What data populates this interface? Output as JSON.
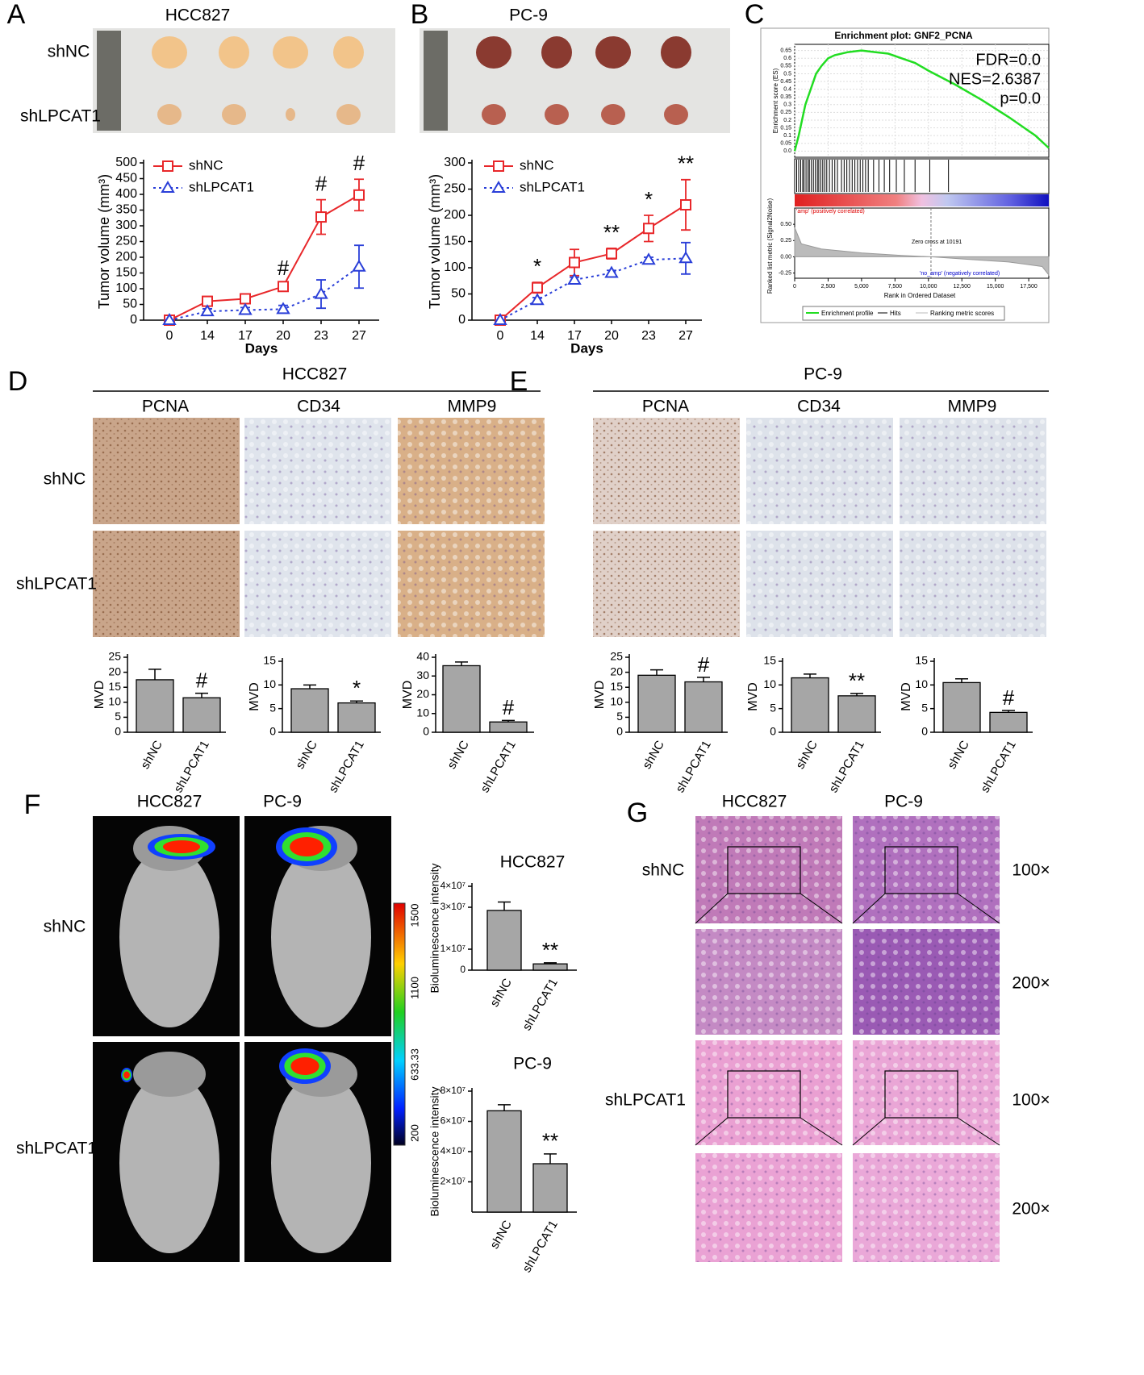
{
  "panel_labels": [
    "A",
    "B",
    "C",
    "D",
    "E",
    "F",
    "G"
  ],
  "photos": [
    {
      "title": "HCC827",
      "rows": [
        "shNC",
        "shLPCAT1"
      ]
    },
    {
      "title": "PC-9",
      "rows": [
        "shNC",
        "shLPCAT1"
      ]
    }
  ],
  "ihc": [
    {
      "title": "HCC827",
      "columns": [
        "PCNA",
        "CD34",
        "MMP9"
      ],
      "rows": [
        "shNC",
        "shLPCAT1"
      ]
    },
    {
      "title": "PC-9",
      "columns": [
        "PCNA",
        "CD34",
        "MMP9"
      ],
      "rows": [
        "shNC",
        "shLPCAT1"
      ]
    }
  ],
  "imaging": {
    "columns": [
      "HCC827",
      "PC-9"
    ],
    "rows": [
      "shNC",
      "shLPCAT1"
    ],
    "colorbar": [
      1500,
      1100,
      633.33,
      200
    ]
  },
  "histology": {
    "columns": [
      "HCC827",
      "PC-9"
    ],
    "rows": [
      "shNC",
      "shLPCAT1"
    ],
    "magnifications": [
      "100×",
      "200×",
      "100×",
      "200×"
    ]
  },
  "chart_data": [
    {
      "type": "line",
      "categories": [
        "0",
        "14",
        "17",
        "20",
        "23",
        "27"
      ],
      "xlabel": "Days",
      "ylabel": "Tumor volume (mm³)",
      "ylim": [
        0,
        500
      ],
      "yticks": [
        0,
        50,
        100,
        150,
        200,
        250,
        300,
        350,
        400,
        450,
        500
      ],
      "series": [
        {
          "name": "shNC",
          "color": "#e8272a",
          "marker": "square",
          "linestyle": "solid",
          "values": [
            0,
            60,
            68,
            107,
            328,
            398
          ],
          "errors": [
            0,
            15,
            8,
            8,
            55,
            50
          ]
        },
        {
          "name": "shLPCAT1",
          "color": "#2a3fd8",
          "marker": "triangle",
          "linestyle": "dotted",
          "values": [
            0,
            28,
            32,
            35,
            83,
            170
          ],
          "errors": [
            0,
            8,
            8,
            12,
            45,
            68
          ]
        }
      ],
      "annotations": [
        null,
        null,
        null,
        "#",
        "#",
        "#"
      ]
    },
    {
      "type": "line",
      "categories": [
        "0",
        "14",
        "17",
        "20",
        "23",
        "27"
      ],
      "xlabel": "Days",
      "ylabel": "Tumor volume (mm³)",
      "ylim": [
        0,
        300
      ],
      "yticks": [
        0,
        50,
        100,
        150,
        200,
        250,
        300
      ],
      "series": [
        {
          "name": "shNC",
          "color": "#e8272a",
          "marker": "square",
          "linestyle": "solid",
          "values": [
            0,
            62,
            110,
            127,
            175,
            220
          ],
          "errors": [
            0,
            10,
            25,
            10,
            25,
            48
          ]
        },
        {
          "name": "shLPCAT1",
          "color": "#2a3fd8",
          "marker": "triangle",
          "linestyle": "dotted",
          "values": [
            0,
            38,
            77,
            90,
            115,
            118
          ],
          "errors": [
            0,
            5,
            5,
            5,
            5,
            30
          ]
        }
      ],
      "annotations": [
        null,
        "*",
        null,
        "**",
        "*",
        "**"
      ]
    },
    {
      "type": "enrichment",
      "title": "Enrichment plot: GNF2_PCNA",
      "ylabel": "Enrichment score (ES)",
      "xlabel": "Rank in Ordered Dataset",
      "xlim": [
        0,
        19000
      ],
      "xticks": [
        0,
        {
          "value": 2500,
          "label": "2,500"
        },
        {
          "value": 5000,
          "label": "5,000"
        },
        {
          "value": 7500,
          "label": "7,500"
        },
        {
          "value": 10000,
          "label": "10,000"
        },
        {
          "value": 12500,
          "label": "12,500"
        },
        {
          "value": 15000,
          "label": "15,000"
        },
        {
          "value": 17500,
          "label": "17,500"
        }
      ],
      "ylim": [
        -0.04,
        0.69
      ],
      "yticks": [
        {
          "value": 0,
          "label": "0.0"
        },
        0.05,
        0.1,
        0.15,
        0.2,
        0.25,
        0.3,
        0.35,
        0.4,
        0.45,
        0.5,
        0.55,
        0.6,
        0.65
      ],
      "x": [
        0,
        300,
        800,
        1200,
        1600,
        2000,
        2500,
        3000,
        4000,
        5000,
        6000,
        7000,
        8000,
        9000,
        10000,
        12000,
        14000,
        16000,
        18000,
        19000
      ],
      "series": [
        {
          "name": "Enrichment profile",
          "color": "#22dd22",
          "values": [
            0,
            0.1,
            0.3,
            0.4,
            0.5,
            0.55,
            0.6,
            0.62,
            0.64,
            0.65,
            0.64,
            0.63,
            0.6,
            0.57,
            0.52,
            0.43,
            0.33,
            0.22,
            0.1,
            0.02
          ]
        }
      ],
      "stats": [
        "FDR=0.0",
        "NES=2.6387",
        "p=0.0"
      ],
      "hits_label": "Hits",
      "hits": [
        150,
        300,
        450,
        600,
        700,
        850,
        1000,
        1100,
        1250,
        1400,
        1550,
        1700,
        1800,
        1950,
        2100,
        2250,
        2400,
        2600,
        2800,
        3000,
        3200,
        3500,
        3700,
        3900,
        4100,
        4300,
        4500,
        4700,
        4900,
        5100,
        5300,
        5500,
        5900,
        6300,
        6700,
        7100,
        7600,
        8200,
        9000,
        10100,
        11500
      ],
      "positive_label": "'amp' (positively correlated)",
      "negative_label": "'no_amp' (negatively correlated)",
      "zero_cross": "Zero cross at 10191",
      "metric": {
        "name": "Ranking metric scores",
        "ylabel": "Ranked list metric (Signal2Noise)",
        "ylim": [
          -0.33,
          0.75
        ],
        "yticks": [
          {
            "value": 0.5,
            "label": "0.50"
          },
          0.25,
          {
            "value": 0,
            "label": "0.00"
          },
          -0.25
        ],
        "x": [
          0,
          500,
          2000,
          5000,
          8000,
          10191,
          13000,
          16000,
          18500,
          19000
        ],
        "values": [
          0.45,
          0.2,
          0.12,
          0.06,
          0.02,
          0,
          -0.04,
          -0.08,
          -0.15,
          -0.28
        ]
      }
    },
    {
      "type": "bar",
      "categories": [
        "shNC",
        "shLPCAT1"
      ],
      "ylabel": "MVD",
      "ylim": [
        0,
        25
      ],
      "yticks": [
        0,
        5,
        10,
        15,
        20,
        25
      ],
      "color": "#a6a6a6",
      "values": [
        17.5,
        11.5
      ],
      "errors": [
        3.5,
        1.5
      ],
      "annotations": [
        null,
        "#"
      ]
    },
    {
      "type": "bar",
      "categories": [
        "shNC",
        "shLPCAT1"
      ],
      "ylabel": "MVD",
      "ylim": [
        0,
        15
      ],
      "yticks": [
        0,
        5,
        10,
        15
      ],
      "color": "#a6a6a6",
      "values": [
        9.2,
        6.2
      ],
      "errors": [
        0.8,
        0.4
      ],
      "annotations": [
        null,
        "*"
      ]
    },
    {
      "type": "bar",
      "categories": [
        "shNC",
        "shLPCAT1"
      ],
      "ylabel": "MVD",
      "ylim": [
        0,
        40
      ],
      "yticks": [
        0,
        10,
        20,
        30,
        40
      ],
      "color": "#a6a6a6",
      "values": [
        35.5,
        5.5
      ],
      "errors": [
        2,
        0.8
      ],
      "annotations": [
        null,
        "#"
      ]
    },
    {
      "type": "bar",
      "categories": [
        "shNC",
        "shLPCAT1"
      ],
      "ylabel": "MVD",
      "ylim": [
        0,
        25
      ],
      "yticks": [
        0,
        5,
        10,
        15,
        20,
        25
      ],
      "color": "#a6a6a6",
      "values": [
        19,
        16.8
      ],
      "errors": [
        1.8,
        1.5
      ],
      "annotations": [
        null,
        "#"
      ]
    },
    {
      "type": "bar",
      "categories": [
        "shNC",
        "shLPCAT1"
      ],
      "ylabel": "MVD",
      "ylim": [
        0,
        15
      ],
      "yticks": [
        0,
        5,
        10,
        15
      ],
      "color": "#a6a6a6",
      "values": [
        11.5,
        7.7
      ],
      "errors": [
        0.8,
        0.5
      ],
      "annotations": [
        null,
        "**"
      ]
    },
    {
      "type": "bar",
      "categories": [
        "shNC",
        "shLPCAT1"
      ],
      "ylabel": "MVD",
      "ylim": [
        0,
        15
      ],
      "yticks": [
        0,
        5,
        10,
        15
      ],
      "color": "#a6a6a6",
      "values": [
        10.5,
        4.2
      ],
      "errors": [
        0.8,
        0.4
      ],
      "annotations": [
        null,
        "#"
      ]
    },
    {
      "type": "bar",
      "title": "HCC827",
      "categories": [
        "shNC",
        "shLPCAT1"
      ],
      "ylabel": "Bioluminescence intensity",
      "ylim": [
        0,
        40000000
      ],
      "yticks": [
        0,
        {
          "value": 10000000,
          "label": "1×10⁷"
        },
        {
          "value": 30000000,
          "label": "3×10⁷"
        },
        {
          "value": 40000000,
          "label": "4×10⁷"
        }
      ],
      "color": "#a6a6a6",
      "values": [
        28500000,
        3000000
      ],
      "errors": [
        4000000,
        500000
      ],
      "annotations": [
        null,
        "**"
      ]
    },
    {
      "type": "bar",
      "title": "PC-9",
      "categories": [
        "shNC",
        "shLPCAT1"
      ],
      "ylabel": "Bioluminescence intensity",
      "ylim": [
        0,
        80000000
      ],
      "yticks": [
        {
          "value": 20000000,
          "label": "2×10⁷"
        },
        {
          "value": 40000000,
          "label": "4×10⁷"
        },
        {
          "value": 60000000,
          "label": "6×10⁷"
        },
        {
          "value": 80000000,
          "label": "8×10⁷"
        }
      ],
      "color": "#a6a6a6",
      "values": [
        67000000,
        32000000
      ],
      "errors": [
        4000000,
        6500000
      ],
      "annotations": [
        null,
        "**"
      ]
    }
  ]
}
